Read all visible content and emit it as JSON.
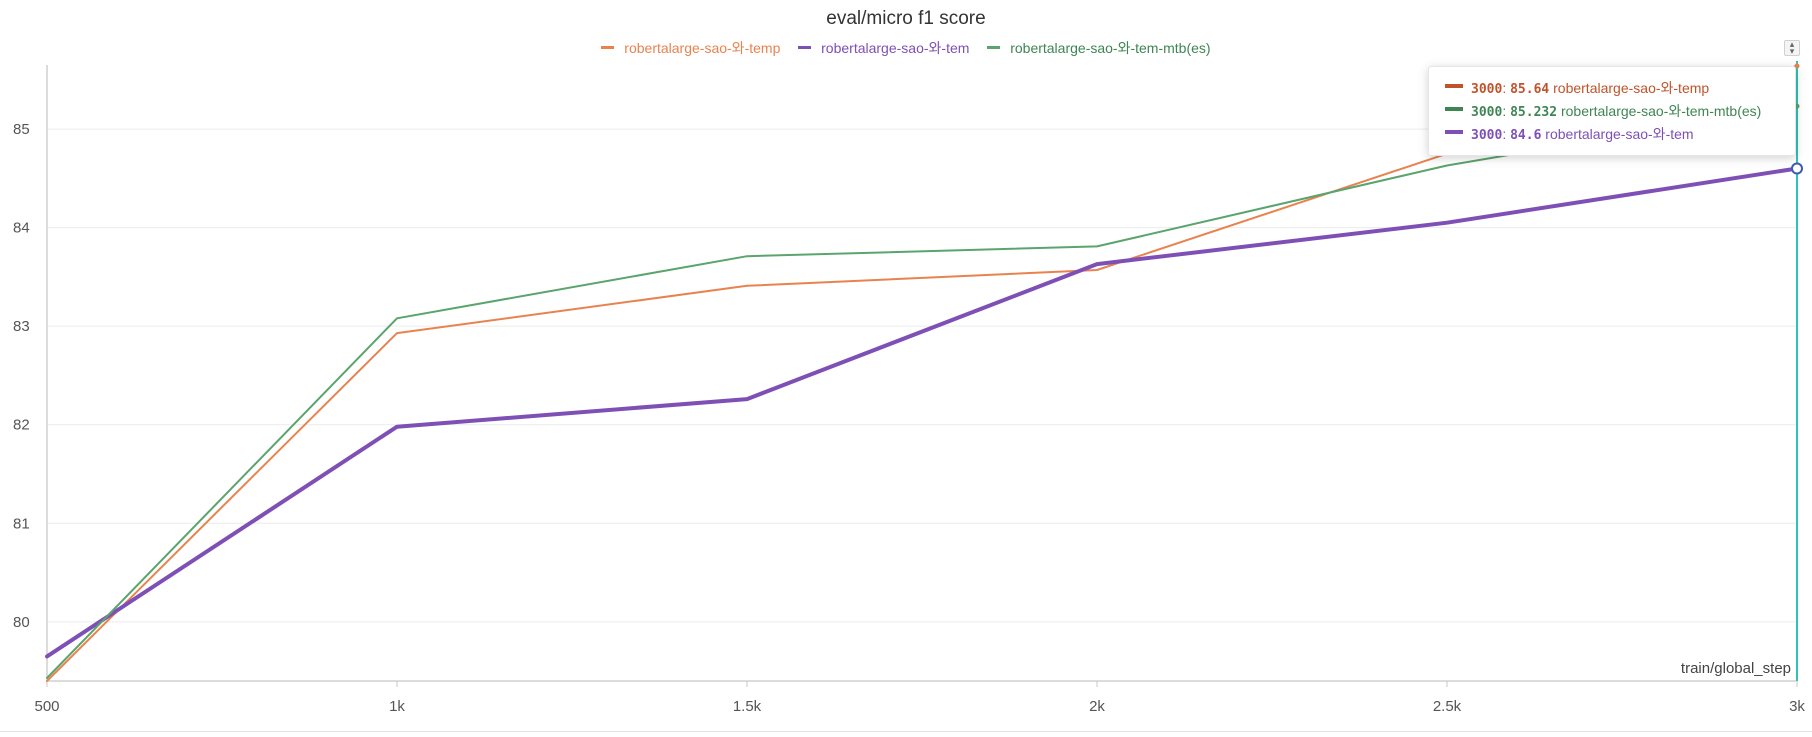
{
  "chart_data": {
    "type": "line",
    "title": "eval/micro f1 score",
    "xlabel": "train/global_step",
    "ylabel": "",
    "xlim": [
      500,
      3000
    ],
    "ylim": [
      79.4,
      85.65
    ],
    "x_ticks": [
      500,
      1000,
      1500,
      2000,
      2500,
      3000
    ],
    "x_tick_labels": [
      "500",
      "1k",
      "1.5k",
      "2k",
      "2.5k",
      "3k"
    ],
    "y_ticks": [
      80,
      81,
      82,
      83,
      84,
      85
    ],
    "y_tick_labels": [
      "80",
      "81",
      "82",
      "83",
      "84",
      "85"
    ],
    "grid": true,
    "legend_position": "top-center",
    "series": [
      {
        "name": "robertalarge-sao-와-temp",
        "color": "#e8834f",
        "width": 2,
        "x": [
          500,
          1000,
          1500,
          2000,
          2500,
          3000
        ],
        "values": [
          79.4,
          82.93,
          83.41,
          83.57,
          84.75,
          85.64
        ]
      },
      {
        "name": "robertalarge-sao-와-tem",
        "color": "#7e50b5",
        "width": 4,
        "x": [
          500,
          1000,
          1500,
          2000,
          2500,
          3000
        ],
        "values": [
          79.65,
          81.98,
          82.26,
          83.63,
          84.05,
          84.6
        ]
      },
      {
        "name": "robertalarge-sao-와-tem-mtb(es)",
        "color": "#5aa46d",
        "width": 2,
        "x": [
          500,
          1000,
          1500,
          2000,
          2500,
          3000
        ],
        "values": [
          79.43,
          83.08,
          83.71,
          83.81,
          84.63,
          85.232
        ]
      }
    ],
    "hover_x": 3000,
    "hover_line_color": "#2ec4b6",
    "tooltip": {
      "rows": [
        {
          "step": "3000",
          "value": "85.64",
          "name": "robertalarge-sao-와-temp",
          "color": "#c0532a"
        },
        {
          "step": "3000",
          "value": "85.232",
          "name": "robertalarge-sao-와-tem-mtb(es)",
          "color": "#3f8554"
        },
        {
          "step": "3000",
          "value": "84.6",
          "name": "robertalarge-sao-와-tem",
          "color": "#7e50b5"
        }
      ]
    }
  },
  "controls": {
    "sort_icon": "sort-icon"
  }
}
